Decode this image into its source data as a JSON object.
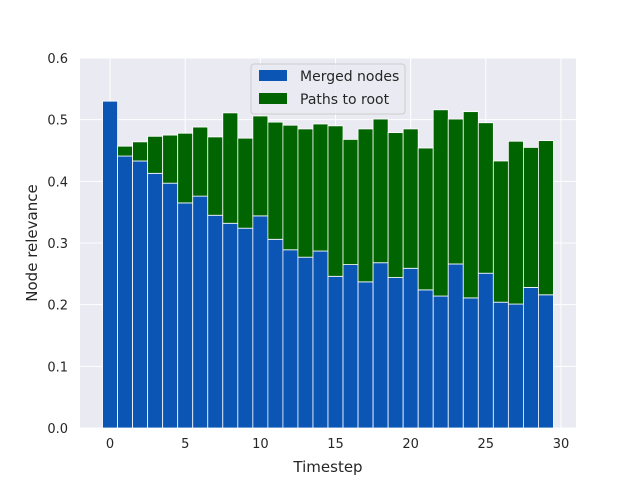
{
  "chart_data": {
    "type": "bar",
    "stacked": true,
    "title": "",
    "xlabel": "Timestep",
    "ylabel": "Node relevance",
    "xlim": [
      -2,
      31
    ],
    "ylim": [
      0,
      0.6
    ],
    "x_ticks": [
      0,
      5,
      10,
      15,
      20,
      25,
      30
    ],
    "y_ticks": [
      "0.0",
      "0.1",
      "0.2",
      "0.3",
      "0.4",
      "0.5",
      "0.6"
    ],
    "grid": true,
    "legend_position": "top-center",
    "x": [
      0,
      1,
      2,
      3,
      4,
      5,
      6,
      7,
      8,
      9,
      10,
      11,
      12,
      13,
      14,
      15,
      16,
      17,
      18,
      19,
      20,
      21,
      22,
      23,
      24,
      25,
      26,
      27,
      28,
      29
    ],
    "series": [
      {
        "name": "Merged nodes",
        "color": "#0b56b5",
        "values": [
          0.53,
          0.441,
          0.433,
          0.413,
          0.397,
          0.365,
          0.376,
          0.345,
          0.332,
          0.324,
          0.344,
          0.306,
          0.289,
          0.277,
          0.287,
          0.246,
          0.265,
          0.237,
          0.268,
          0.244,
          0.259,
          0.224,
          0.214,
          0.266,
          0.211,
          0.251,
          0.204,
          0.201,
          0.228,
          0.216
        ]
      },
      {
        "name": "Paths to root",
        "color": "#006400",
        "values": [
          0.0,
          0.016,
          0.031,
          0.06,
          0.078,
          0.113,
          0.112,
          0.127,
          0.179,
          0.146,
          0.162,
          0.19,
          0.202,
          0.208,
          0.206,
          0.244,
          0.203,
          0.248,
          0.233,
          0.235,
          0.226,
          0.23,
          0.302,
          0.235,
          0.302,
          0.244,
          0.229,
          0.264,
          0.227,
          0.25
        ]
      }
    ]
  }
}
